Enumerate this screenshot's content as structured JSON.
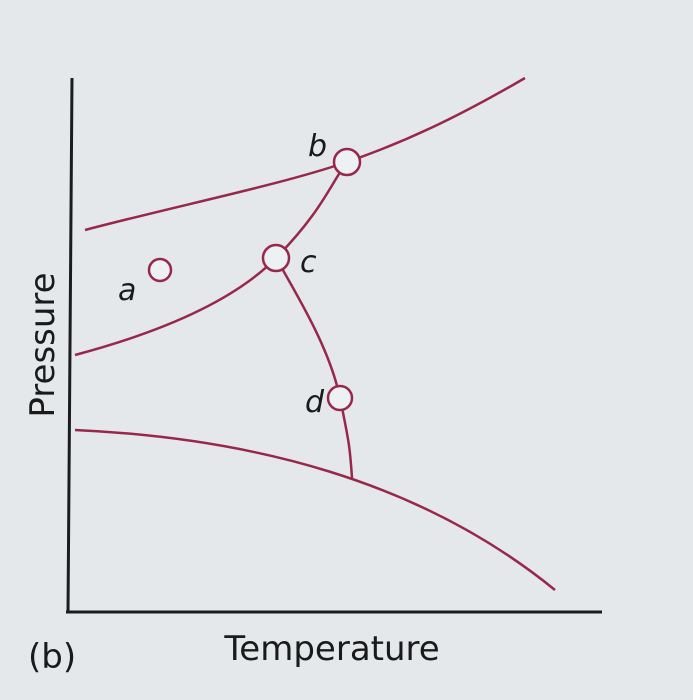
{
  "figure": {
    "label": "(b)",
    "x_axis_label": "Temperature",
    "y_axis_label": "Pressure",
    "points": [
      "a",
      "b",
      "c",
      "d"
    ]
  }
}
